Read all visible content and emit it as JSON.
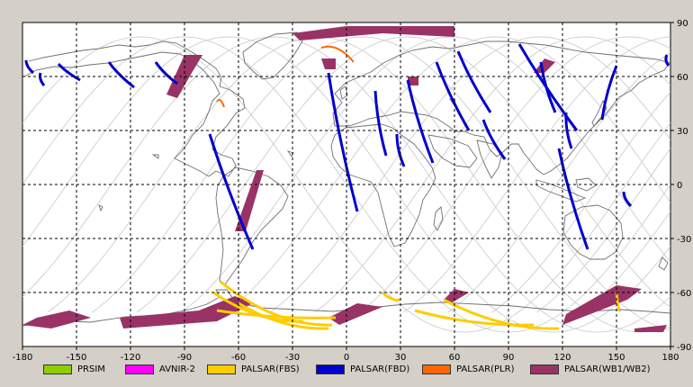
{
  "colors": {
    "background": "#d4d0c8",
    "map": "#ffffff",
    "grid": "#000000",
    "coast": "#707070",
    "orbit": "#c8c8c8",
    "prism": "#8fce00",
    "avnir": "#ff00ff",
    "fbs": "#ffcc00",
    "fbd": "#0000cc",
    "plr": "#ff6600",
    "wb": "#993366"
  },
  "axes": {
    "x_ticks": [
      "-180",
      "-150",
      "-120",
      "-90",
      "-60",
      "-30",
      "0",
      "30",
      "60",
      "90",
      "120",
      "150",
      "180"
    ],
    "y_ticks": [
      "90",
      "60",
      "30",
      "0",
      "-30",
      "-60",
      "-90"
    ],
    "lon_range": [
      -180,
      180
    ],
    "lat_range": [
      -90,
      90
    ]
  },
  "legend": [
    {
      "label": "PRSIM",
      "color": "#8fce00"
    },
    {
      "label": "AVNIR-2",
      "color": "#ff00ff"
    },
    {
      "label": "PALSAR(FBS)",
      "color": "#ffcc00"
    },
    {
      "label": "PALSAR(FBD)",
      "color": "#0000cc"
    },
    {
      "label": "PALSAR(PLR)",
      "color": "#ff6600"
    },
    {
      "label": "PALSAR(WB1/WB2)",
      "color": "#993366"
    }
  ],
  "swaths": {
    "fbd": [
      [
        [
          -178,
          69
        ],
        [
          -174,
          62
        ]
      ],
      [
        [
          -170,
          62
        ],
        [
          -168,
          55
        ]
      ],
      [
        [
          -160,
          67
        ],
        [
          -148,
          58
        ]
      ],
      [
        [
          -132,
          68
        ],
        [
          -118,
          54
        ]
      ],
      [
        [
          -106,
          68
        ],
        [
          -94,
          56
        ]
      ],
      [
        [
          -76,
          28
        ],
        [
          -52,
          -36
        ]
      ],
      [
        [
          -10,
          62
        ],
        [
          6,
          -15
        ]
      ],
      [
        [
          16,
          52
        ],
        [
          22,
          16
        ]
      ],
      [
        [
          28,
          28
        ],
        [
          32,
          10
        ]
      ],
      [
        [
          34,
          58
        ],
        [
          48,
          12
        ]
      ],
      [
        [
          50,
          68
        ],
        [
          68,
          30
        ]
      ],
      [
        [
          62,
          74
        ],
        [
          80,
          40
        ]
      ],
      [
        [
          76,
          36
        ],
        [
          88,
          14
        ]
      ],
      [
        [
          96,
          78
        ],
        [
          128,
          30
        ]
      ],
      [
        [
          108,
          68
        ],
        [
          116,
          40
        ]
      ],
      [
        [
          118,
          20
        ],
        [
          134,
          -36
        ]
      ],
      [
        [
          122,
          40
        ],
        [
          125,
          20
        ]
      ],
      [
        [
          150,
          66
        ],
        [
          142,
          36
        ]
      ],
      [
        [
          154,
          -4
        ],
        [
          158,
          -12
        ]
      ],
      [
        [
          178,
          72
        ],
        [
          179,
          66
        ]
      ]
    ],
    "fbs": [
      [
        [
          -70,
          -54
        ],
        [
          -8,
          -78
        ]
      ],
      [
        [
          -74,
          -60
        ],
        [
          -24,
          -76
        ]
      ],
      [
        [
          -60,
          -66
        ],
        [
          -10,
          -80
        ]
      ],
      [
        [
          -72,
          -70
        ],
        [
          -6,
          -74
        ]
      ],
      [
        [
          54,
          -64
        ],
        [
          118,
          -80
        ]
      ],
      [
        [
          38,
          -70
        ],
        [
          104,
          -78
        ]
      ],
      [
        [
          150,
          -60
        ],
        [
          152,
          -70
        ]
      ],
      [
        [
          20,
          -60
        ],
        [
          30,
          -64
        ]
      ]
    ],
    "plr": [
      [
        [
          -14,
          76
        ],
        [
          4,
          68
        ]
      ],
      [
        [
          -72,
          46
        ],
        [
          -68,
          43
        ]
      ]
    ],
    "wb": [
      [
        [
          -180,
          -78
        ],
        [
          -164,
          -80
        ],
        [
          -142,
          -74
        ],
        [
          -154,
          -70
        ],
        [
          -172,
          -74
        ]
      ],
      [
        [
          -124,
          -80
        ],
        [
          -72,
          -76
        ],
        [
          -52,
          -66
        ],
        [
          -62,
          -62
        ],
        [
          -82,
          -70
        ],
        [
          -126,
          -74
        ]
      ],
      [
        [
          -10,
          -74
        ],
        [
          6,
          -66
        ],
        [
          20,
          -68
        ],
        [
          -4,
          -78
        ]
      ],
      [
        [
          120,
          -78
        ],
        [
          156,
          -64
        ],
        [
          164,
          -58
        ],
        [
          150,
          -56
        ],
        [
          122,
          -72
        ]
      ],
      [
        [
          160,
          -80
        ],
        [
          178,
          -78
        ],
        [
          176,
          -82
        ],
        [
          160,
          -82
        ]
      ],
      [
        [
          54,
          -64
        ],
        [
          60,
          -58
        ],
        [
          68,
          -60
        ],
        [
          58,
          -66
        ]
      ],
      [
        [
          -90,
          72
        ],
        [
          -80,
          72
        ],
        [
          -86,
          62
        ],
        [
          -94,
          48
        ],
        [
          -100,
          50
        ]
      ],
      [
        [
          -30,
          84
        ],
        [
          0,
          88
        ],
        [
          60,
          88
        ],
        [
          60,
          82
        ],
        [
          20,
          84
        ],
        [
          -26,
          80
        ]
      ],
      [
        [
          -14,
          70
        ],
        [
          -6,
          70
        ],
        [
          -6,
          64
        ],
        [
          -12,
          64
        ]
      ],
      [
        [
          34,
          60
        ],
        [
          40,
          60
        ],
        [
          40,
          55
        ],
        [
          34,
          55
        ]
      ],
      [
        [
          110,
          70
        ],
        [
          116,
          68
        ],
        [
          110,
          62
        ],
        [
          104,
          62
        ]
      ],
      [
        [
          -50,
          8
        ],
        [
          -46,
          8
        ],
        [
          -56,
          -26
        ],
        [
          -62,
          -26
        ]
      ]
    ]
  }
}
